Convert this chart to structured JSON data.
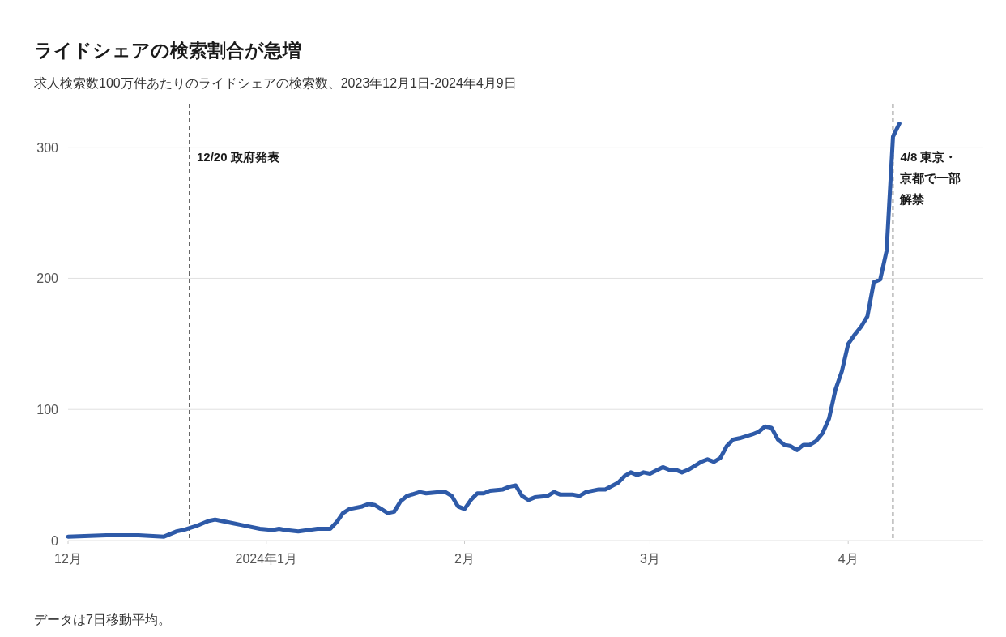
{
  "chart_data": {
    "type": "line",
    "title": "ライドシェアの検索割合が急増",
    "subtitle": "求人検索数100万件あたりのライドシェアの検索数、2023年12月1日-2024年4月9日",
    "x": [
      "2023-12-01",
      "2023-12-07",
      "2023-12-12",
      "2023-12-16",
      "2023-12-18",
      "2023-12-19",
      "2023-12-21",
      "2023-12-23",
      "2023-12-24",
      "2023-12-25",
      "2023-12-27",
      "2023-12-28",
      "2023-12-31",
      "2024-01-02",
      "2024-01-03",
      "2024-01-04",
      "2024-01-06",
      "2024-01-09",
      "2024-01-11",
      "2024-01-12",
      "2024-01-13",
      "2024-01-14",
      "2024-01-16",
      "2024-01-17",
      "2024-01-18",
      "2024-01-19",
      "2024-01-20",
      "2024-01-21",
      "2024-01-22",
      "2024-01-23",
      "2024-01-25",
      "2024-01-26",
      "2024-01-28",
      "2024-01-29",
      "2024-01-30",
      "2024-01-31",
      "2024-02-01",
      "2024-02-02",
      "2024-02-03",
      "2024-02-04",
      "2024-02-05",
      "2024-02-07",
      "2024-02-08",
      "2024-02-09",
      "2024-02-10",
      "2024-02-11",
      "2024-02-12",
      "2024-02-14",
      "2024-02-15",
      "2024-02-16",
      "2024-02-18",
      "2024-02-19",
      "2024-02-20",
      "2024-02-22",
      "2024-02-23",
      "2024-02-25",
      "2024-02-26",
      "2024-02-27",
      "2024-02-28",
      "2024-02-29",
      "2024-03-01",
      "2024-03-03",
      "2024-03-04",
      "2024-03-05",
      "2024-03-06",
      "2024-03-07",
      "2024-03-08",
      "2024-03-09",
      "2024-03-10",
      "2024-03-11",
      "2024-03-12",
      "2024-03-13",
      "2024-03-14",
      "2024-03-15",
      "2024-03-17",
      "2024-03-18",
      "2024-03-19",
      "2024-03-20",
      "2024-03-21",
      "2024-03-22",
      "2024-03-23",
      "2024-03-24",
      "2024-03-25",
      "2024-03-26",
      "2024-03-27",
      "2024-03-28",
      "2024-03-29",
      "2024-03-30",
      "2024-03-31",
      "2024-04-01",
      "2024-04-02",
      "2024-04-03",
      "2024-04-04",
      "2024-04-05",
      "2024-04-06",
      "2024-04-07",
      "2024-04-08",
      "2024-04-09"
    ],
    "series": [
      {
        "color": "#2e5aa8",
        "values": [
          3,
          4,
          4,
          3,
          7,
          8,
          11,
          15,
          16,
          15,
          13,
          12,
          9,
          8,
          9,
          8,
          7,
          9,
          9,
          14,
          21,
          24,
          26,
          28,
          27,
          24,
          21,
          22,
          30,
          34,
          37,
          36,
          37,
          37,
          34,
          26,
          24,
          31,
          36,
          36,
          38,
          39,
          41,
          42,
          34,
          31,
          33,
          34,
          37,
          35,
          35,
          34,
          37,
          39,
          39,
          44,
          49,
          52,
          50,
          52,
          51,
          56,
          54,
          54,
          52,
          54,
          57,
          60,
          62,
          60,
          63,
          72,
          77,
          78,
          81,
          83,
          87,
          86,
          77,
          73,
          72,
          69,
          73,
          73,
          76,
          82,
          93,
          115,
          129,
          150,
          157,
          163,
          171,
          197,
          199,
          221,
          308,
          318
        ]
      }
    ],
    "xlim": [
      "2023-12-01",
      "2024-04-22"
    ],
    "xticks": [
      {
        "value": "2023-12-01",
        "label": "12月"
      },
      {
        "value": "2024-01-01",
        "label": "2024年1月"
      },
      {
        "value": "2024-02-01",
        "label": "2月"
      },
      {
        "value": "2024-03-01",
        "label": "3月"
      },
      {
        "value": "2024-04-01",
        "label": "4月"
      }
    ],
    "ylim": [
      0,
      335
    ],
    "yticks": [
      0,
      100,
      200,
      300
    ],
    "grid": "y",
    "line_style": "solid",
    "marker": "none",
    "ref_lines": [
      {
        "axis": "x",
        "value": "2023-12-20",
        "label": "12/20 政府発表",
        "line_style": "dashed"
      },
      {
        "axis": "x",
        "value": "2024-04-08",
        "label": "4/8 東京・京都で一部解禁",
        "line_style": "dashed"
      }
    ],
    "annotations": [
      "データは7日移動平均。"
    ]
  }
}
